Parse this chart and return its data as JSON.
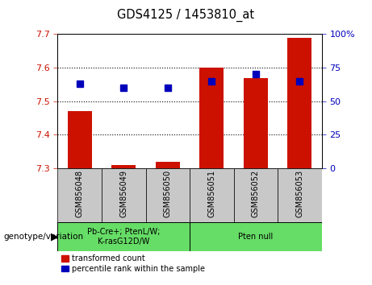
{
  "title": "GDS4125 / 1453810_at",
  "samples": [
    "GSM856048",
    "GSM856049",
    "GSM856050",
    "GSM856051",
    "GSM856052",
    "GSM856053"
  ],
  "red_values": [
    7.47,
    7.31,
    7.32,
    7.6,
    7.57,
    7.69
  ],
  "blue_values_pct": [
    63,
    60,
    60,
    65,
    70,
    65
  ],
  "ylim": [
    7.3,
    7.7
  ],
  "yticks": [
    7.3,
    7.4,
    7.5,
    7.6,
    7.7
  ],
  "y2lim": [
    0,
    100
  ],
  "y2ticks": [
    0,
    25,
    50,
    75,
    100
  ],
  "y2labels": [
    "0",
    "25",
    "50",
    "75",
    "100%"
  ],
  "red_color": "#cc1100",
  "blue_color": "#0000bb",
  "dot_color": "black",
  "bg_plot": "white",
  "bg_xlabel": "#c8c8c8",
  "bg_group": "#66dd66",
  "group1_label": "Pb-Cre+; PtenL/W;\nK-rasG12D/W",
  "group2_label": "Pten null",
  "group1_samples": [
    0,
    1,
    2
  ],
  "group2_samples": [
    3,
    4,
    5
  ],
  "legend_red": "transformed count",
  "legend_blue": "percentile rank within the sample",
  "genotype_label": "genotype/variation",
  "bar_width": 0.55,
  "blue_marker_size": 6
}
